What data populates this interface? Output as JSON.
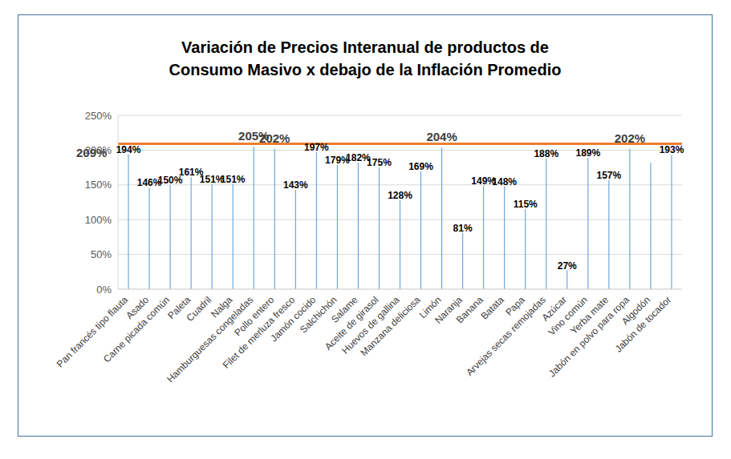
{
  "chart_data": {
    "type": "bar",
    "title": "Variación de Precios Interanual de productos de\nConsumo Masivo x debajo de la Inflación Promedio",
    "categories": [
      "Pan francés tipo flauta",
      "Asado",
      "Carne picada común",
      "Paleta",
      "Cuadril",
      "Nalga",
      "Hamburguesas congeladas",
      "Pollo entero",
      "Filet de merluza fresco",
      "Jamón cocido",
      "Salchichón",
      "Salame",
      "Aceite de girasol",
      "Huevos de gallina",
      "Manzana deliciosa",
      "Limón",
      "Naranja",
      "Banana",
      "Batata",
      "Papa",
      "Arvejas secas remojadas",
      "Azúcar",
      "Vino común",
      "Yerba mate",
      "Jabón en polvo para ropa",
      "Algodón",
      "Jabón de tocador"
    ],
    "values": [
      194,
      146,
      150,
      161,
      151,
      151,
      205,
      202,
      143,
      197,
      179,
      182,
      175,
      128,
      169,
      204,
      81,
      149,
      148,
      115,
      188,
      27,
      189,
      157,
      202,
      182,
      193
    ],
    "value_labels": [
      "194%",
      "146%",
      "150%",
      "161%",
      "151%",
      "151%",
      "205%",
      "202%",
      "143%",
      "197%",
      "179%",
      "182%",
      "175%",
      "128%",
      "169%",
      "204%",
      "81%",
      "149%",
      "148%",
      "115%",
      "188%",
      "27%",
      "189%",
      "157%",
      "202%",
      null,
      "193%"
    ],
    "color": "#5b9bd5",
    "data_labels": true,
    "ylim": [
      0,
      250
    ],
    "yticks": [
      {
        "value": 0,
        "label": "0%"
      },
      {
        "value": 50,
        "label": "50%"
      },
      {
        "value": 100,
        "label": "100%"
      },
      {
        "value": 150,
        "label": "150%"
      },
      {
        "value": 200,
        "label": "200%"
      },
      {
        "value": 250,
        "label": "250%"
      }
    ],
    "grid": true,
    "annotations": [
      {
        "y": 209,
        "label": "209%",
        "color": "#ed7d31"
      }
    ]
  }
}
